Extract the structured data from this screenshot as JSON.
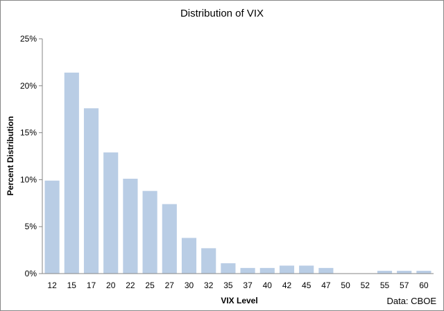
{
  "chart_data": {
    "type": "bar",
    "title": "Distribution of VIX",
    "xlabel": "VIX Level",
    "ylabel": "Percent Distribution",
    "source": "Data: CBOE",
    "categories": [
      "12",
      "15",
      "17",
      "20",
      "22",
      "25",
      "27",
      "30",
      "32",
      "35",
      "37",
      "40",
      "42",
      "45",
      "47",
      "50",
      "52",
      "55",
      "57",
      "60"
    ],
    "values": [
      9.9,
      21.4,
      17.6,
      12.9,
      10.1,
      8.8,
      7.4,
      3.8,
      2.7,
      1.1,
      0.6,
      0.6,
      0.85,
      0.85,
      0.6,
      0,
      0,
      0.3,
      0.3,
      0.3
    ],
    "ylim": [
      0,
      25
    ],
    "yticks": [
      0,
      5,
      10,
      15,
      20,
      25
    ],
    "ytick_labels": [
      "0%",
      "5%",
      "10%",
      "15%",
      "20%",
      "25%"
    ],
    "grid": false,
    "legend": "none",
    "bar_color": "#b9cde5",
    "axis_color": "#868686"
  }
}
